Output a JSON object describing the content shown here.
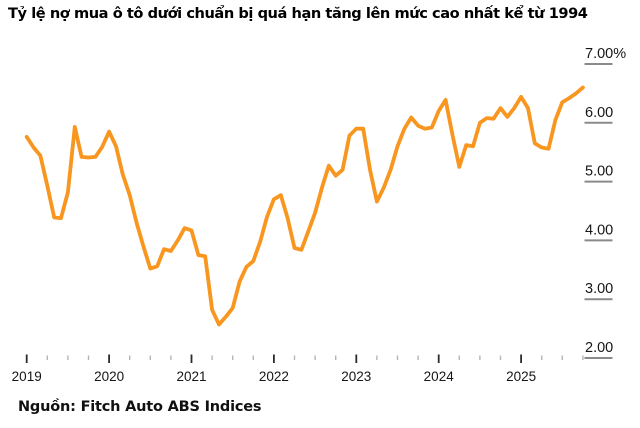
{
  "title": "Tỷ lệ nợ mua ô tô dưới chuẩn bị quá hạn tăng lên mức cao nhất kể từ 1994",
  "source": "Nguồn: Fitch Auto ABS Indices",
  "colors": {
    "line": "#F8961F",
    "text": "#161616",
    "y_tick_line": "#8a8a8a",
    "x_major_tick": "#2b2b2b",
    "x_minor_tick": "#b5b5b5",
    "background": "#ffffff"
  },
  "chart_data": {
    "type": "line",
    "title": "Tỷ lệ nợ mua ô tô dưới chuẩn bị quá hạn tăng lên mức cao nhất kể từ 1994",
    "xlabel": "",
    "ylabel": "",
    "legend": "none",
    "grid": "right-edge tick dashes only",
    "x_range": [
      2019.0,
      2025.81
    ],
    "ylim": [
      2.0,
      7.0
    ],
    "y_ticks": [
      7,
      6,
      5,
      4,
      3,
      2
    ],
    "y_tick_labels": [
      "7.00%",
      "6.00",
      "5.00",
      "4.00",
      "3.00",
      "2.00"
    ],
    "x_ticks": [
      2019,
      2020,
      2021,
      2022,
      2023,
      2024,
      2025
    ],
    "x_tick_labels": [
      "2019",
      "2020",
      "2021",
      "2022",
      "2023",
      "2024",
      "2025"
    ],
    "minor_x_tick_step_years": 0.25,
    "line_color": "#F8961F",
    "x_unit": "monthly, decimal years",
    "x": [
      2019.0,
      2019.0833,
      2019.1667,
      2019.25,
      2019.3333,
      2019.4167,
      2019.5,
      2019.5833,
      2019.6667,
      2019.75,
      2019.8333,
      2019.9167,
      2020.0,
      2020.0833,
      2020.1667,
      2020.25,
      2020.3333,
      2020.4167,
      2020.5,
      2020.5833,
      2020.6667,
      2020.75,
      2020.8333,
      2020.9167,
      2021.0,
      2021.0833,
      2021.1667,
      2021.25,
      2021.3333,
      2021.4167,
      2021.5,
      2021.5833,
      2021.6667,
      2021.75,
      2021.8333,
      2021.9167,
      2022.0,
      2022.0833,
      2022.1667,
      2022.25,
      2022.3333,
      2022.4167,
      2022.5,
      2022.5833,
      2022.6667,
      2022.75,
      2022.8333,
      2022.9167,
      2023.0,
      2023.0833,
      2023.1667,
      2023.25,
      2023.3333,
      2023.4167,
      2023.5,
      2023.5833,
      2023.6667,
      2023.75,
      2023.8333,
      2023.9167,
      2024.0,
      2024.0833,
      2024.1667,
      2024.25,
      2024.3333,
      2024.4167,
      2024.5,
      2024.5833,
      2024.6667,
      2024.75,
      2024.8333,
      2024.9167,
      2025.0,
      2025.0833,
      2025.1667,
      2025.25,
      2025.3333,
      2025.4167,
      2025.5,
      2025.5833,
      2025.6667,
      2025.75
    ],
    "values": [
      5.76,
      5.58,
      5.44,
      4.93,
      4.39,
      4.38,
      4.82,
      5.93,
      5.42,
      5.41,
      5.42,
      5.59,
      5.85,
      5.6,
      5.12,
      4.77,
      4.3,
      3.9,
      3.52,
      3.56,
      3.85,
      3.82,
      4.0,
      4.21,
      4.17,
      3.75,
      3.73,
      2.82,
      2.57,
      2.7,
      2.85,
      3.3,
      3.55,
      3.65,
      3.98,
      4.4,
      4.7,
      4.77,
      4.38,
      3.87,
      3.84,
      4.15,
      4.47,
      4.9,
      5.27,
      5.1,
      5.2,
      5.78,
      5.9,
      5.9,
      5.2,
      4.66,
      4.9,
      5.2,
      5.6,
      5.9,
      6.09,
      5.95,
      5.9,
      5.92,
      6.2,
      6.39,
      5.8,
      5.25,
      5.62,
      5.6,
      6.0,
      6.08,
      6.07,
      6.25,
      6.1,
      6.25,
      6.44,
      6.25,
      5.65,
      5.58,
      5.56,
      6.05,
      6.35,
      6.42,
      6.5,
      6.6
    ]
  }
}
